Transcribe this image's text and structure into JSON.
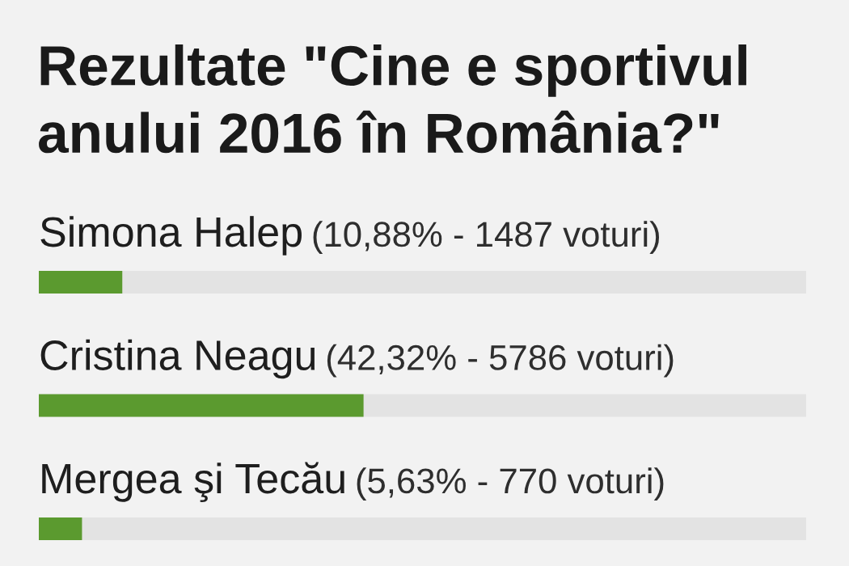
{
  "chart_data": {
    "type": "bar",
    "orientation": "horizontal",
    "title": "Rezultate \"Cine e sportivul anului 2016 în România?\"",
    "categories": [
      "Simona Halep",
      "Cristina Neagu",
      "Mergea şi Tecău"
    ],
    "values": [
      10.88,
      42.32,
      5.63
    ],
    "value_labels": [
      "(10,88% - 1487 voturi)",
      "(42,32% - 5786 voturi)",
      "(5,63% - 770 voturi)"
    ],
    "color": "#5b9a2f",
    "xlim": [
      0,
      100
    ],
    "tick_labels": "y"
  }
}
